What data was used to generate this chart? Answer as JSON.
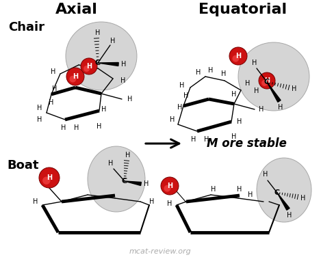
{
  "title_axial": "Axial",
  "title_equatorial": "Equatorial",
  "label_chair": "Chair",
  "label_boat": "Boat",
  "more_stable": "M ore stable",
  "watermark": "mcat-review.org",
  "bg_color": "#ffffff",
  "sphere_color": "#cccccc",
  "sphere_edge": "#999999",
  "red_color": "#cc1111",
  "watermark_color": "#aaaaaa",
  "fig_w": 4.69,
  "fig_h": 3.76,
  "dpi": 100
}
